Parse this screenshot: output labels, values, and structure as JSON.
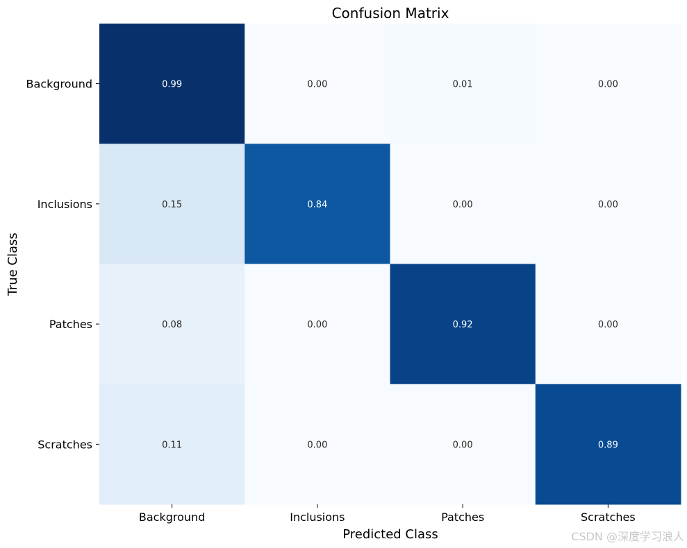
{
  "chart_data": {
    "type": "heatmap",
    "title": "Confusion Matrix",
    "xlabel": "Predicted Class",
    "ylabel": "True Class",
    "x_categories": [
      "Background",
      "Inclusions",
      "Patches",
      "Scratches"
    ],
    "y_categories": [
      "Background",
      "Inclusions",
      "Patches",
      "Scratches"
    ],
    "values": [
      [
        0.99,
        0.0,
        0.01,
        0.0
      ],
      [
        0.15,
        0.84,
        0.0,
        0.0
      ],
      [
        0.08,
        0.0,
        0.92,
        0.0
      ],
      [
        0.11,
        0.0,
        0.0,
        0.89
      ]
    ],
    "value_format": "0.00",
    "colormap": "Blues",
    "colorbar": false,
    "grid": false
  },
  "watermark": "CSDN @深度学习浪人"
}
